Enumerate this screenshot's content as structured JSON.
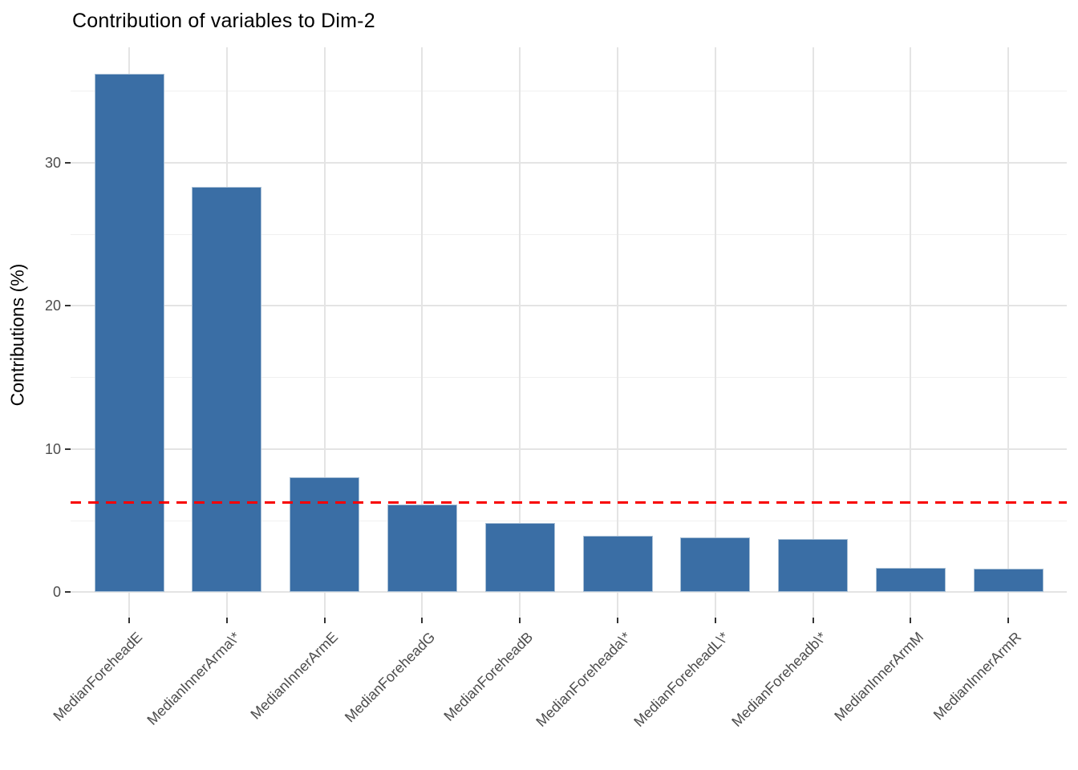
{
  "chart_data": {
    "type": "bar",
    "title": "Contribution of variables to Dim-2",
    "xlabel": "",
    "ylabel": "Contributions (%)",
    "categories": [
      "MedianForeheadE",
      "MedianInnerArma\\*",
      "MedianInnerArmE",
      "MedianForeheadG",
      "MedianForeheadB",
      "MedianForeheada\\*",
      "MedianForeheadL\\*",
      "MedianForeheadb\\*",
      "MedianInnerArmM",
      "MedianInnerArmR"
    ],
    "values": [
      36.2,
      28.3,
      8.0,
      6.1,
      4.8,
      3.9,
      3.8,
      3.7,
      1.7,
      1.6
    ],
    "ylim": [
      0,
      38.1
    ],
    "yticks": [
      0,
      10,
      20,
      30
    ],
    "yticks_minor": [
      5,
      15,
      25,
      35
    ],
    "grid": "on",
    "legend": "none",
    "reference_line": {
      "value": 6.25,
      "style": "dashed",
      "color": "#f80000"
    },
    "bar_color": "#3a6ea5",
    "bar_border_color": "#a9c0d6",
    "major_grid_color": "#e4e4e4",
    "minor_grid_color": "#f0f0f0",
    "tick_label_color": "#4d4d4d",
    "title_color": "#000000"
  }
}
